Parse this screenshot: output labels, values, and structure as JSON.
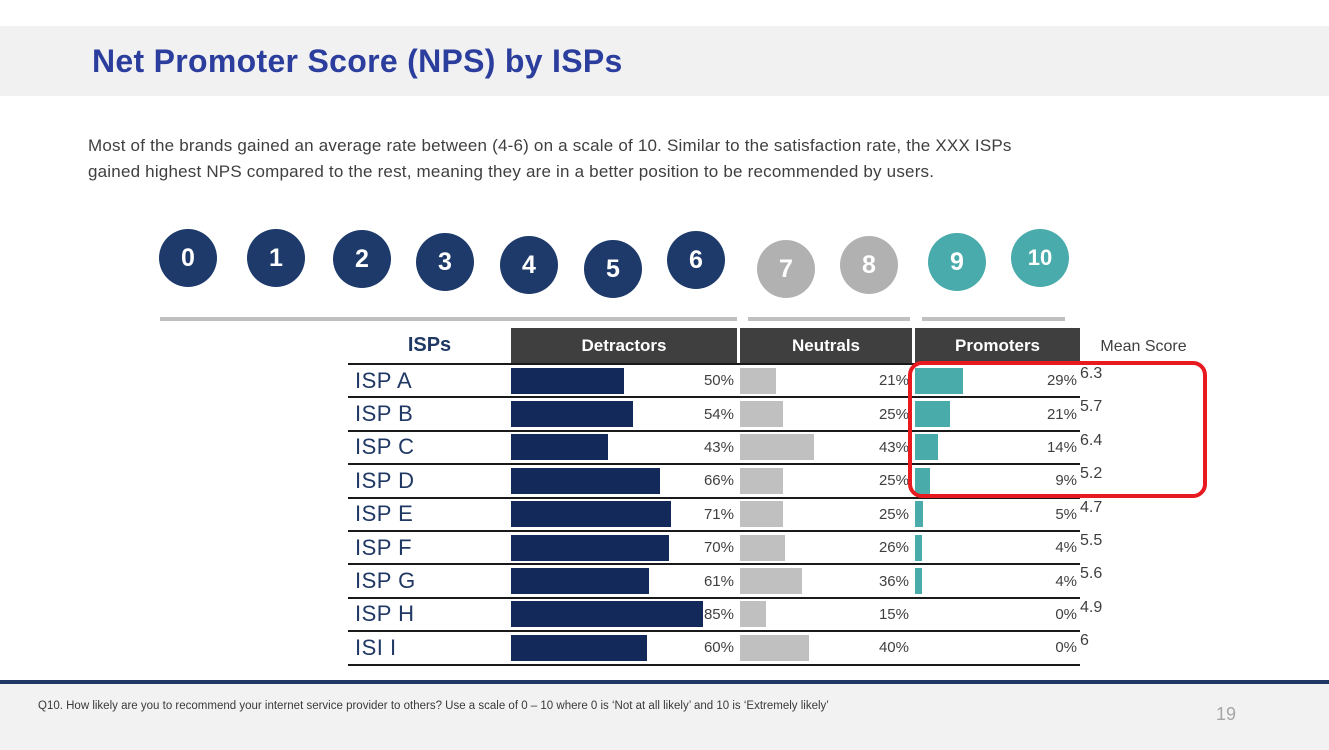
{
  "slide": {
    "title": "Net Promoter Score (NPS) by ISPs",
    "page_number": "19",
    "footnote": "Q10. How likely are you to recommend your internet service provider to others? Use a scale of 0 – 10 where 0 is ‘Not at all likely’ and 10 is ‘Extremely likely’"
  },
  "intro": {
    "line1": "Most of the brands gained an average rate between (4-6) on a scale of 10. Similar to the satisfaction rate, the XXX ISPs",
    "line2": "gained highest NPS compared to the rest, meaning they are in a better position to be recommended by users."
  },
  "scale": {
    "items": [
      {
        "label": "0",
        "group": "detractors"
      },
      {
        "label": "1",
        "group": "detractors"
      },
      {
        "label": "2",
        "group": "detractors"
      },
      {
        "label": "3",
        "group": "detractors"
      },
      {
        "label": "4",
        "group": "detractors"
      },
      {
        "label": "5",
        "group": "detractors"
      },
      {
        "label": "6",
        "group": "detractors"
      },
      {
        "label": "7",
        "group": "neutrals"
      },
      {
        "label": "8",
        "group": "neutrals"
      },
      {
        "label": "9",
        "group": "promoters"
      },
      {
        "label": "10",
        "group": "promoters"
      }
    ]
  },
  "table": {
    "headers": {
      "isps": "ISPs",
      "detractors": "Detractors",
      "neutrals": "Neutrals",
      "promoters": "Promoters",
      "mean": "Mean Score"
    },
    "rows": [
      {
        "label": "ISP A",
        "detractors": 50,
        "detractors_label": "50%",
        "neutrals": 21,
        "neutrals_label": "21%",
        "promoters": 29,
        "promoters_label": "29%",
        "mean": "6.3"
      },
      {
        "label": "ISP B",
        "detractors": 54,
        "detractors_label": "54%",
        "neutrals": 25,
        "neutrals_label": "25%",
        "promoters": 21,
        "promoters_label": "21%",
        "mean": "5.7"
      },
      {
        "label": "ISP C",
        "detractors": 43,
        "detractors_label": "43%",
        "neutrals": 43,
        "neutrals_label": "43%",
        "promoters": 14,
        "promoters_label": "14%",
        "mean": "6.4"
      },
      {
        "label": "ISP D",
        "detractors": 66,
        "detractors_label": "66%",
        "neutrals": 25,
        "neutrals_label": "25%",
        "promoters": 9,
        "promoters_label": "9%",
        "mean": "5.2"
      },
      {
        "label": "ISP E",
        "detractors": 71,
        "detractors_label": "71%",
        "neutrals": 25,
        "neutrals_label": "25%",
        "promoters": 5,
        "promoters_label": "5%",
        "mean": "4.7"
      },
      {
        "label": "ISP F",
        "detractors": 70,
        "detractors_label": "70%",
        "neutrals": 26,
        "neutrals_label": "26%",
        "promoters": 4,
        "promoters_label": "4%",
        "mean": "5.5"
      },
      {
        "label": "ISP G",
        "detractors": 61,
        "detractors_label": "61%",
        "neutrals": 36,
        "neutrals_label": "36%",
        "promoters": 4,
        "promoters_label": "4%",
        "mean": "5.6"
      },
      {
        "label": "ISP H",
        "detractors": 85,
        "detractors_label": "85%",
        "neutrals": 15,
        "neutrals_label": "15%",
        "promoters": 0,
        "promoters_label": "0%",
        "mean": "4.9"
      },
      {
        "label": "ISI I",
        "detractors": 60,
        "detractors_label": "60%",
        "neutrals": 40,
        "neutrals_label": "40%",
        "promoters": 0,
        "promoters_label": "0%",
        "mean": "6"
      }
    ]
  },
  "colors": {
    "title_blue": "#2b3e9d",
    "navy": "#1f3864",
    "bar_navy": "#12295a",
    "teal": "#4aabab",
    "gray_circle": "#b1b1b1",
    "gray_bar": "#c0c0c0",
    "header_dark": "#3f3f3f",
    "highlight_red": "#e8191f",
    "band_gray": "#f1f1f2",
    "footer_gray": "#f2f2f2"
  },
  "chart_data": {
    "type": "bar",
    "orientation": "horizontal",
    "title": "Net Promoter Score (NPS) by ISPs",
    "categories": [
      "ISP A",
      "ISP B",
      "ISP C",
      "ISP D",
      "ISP E",
      "ISP F",
      "ISP G",
      "ISP H",
      "ISI I"
    ],
    "series": [
      {
        "name": "Detractors",
        "values": [
          50,
          54,
          43,
          66,
          71,
          70,
          61,
          85,
          60
        ],
        "color": "#12295a"
      },
      {
        "name": "Neutrals",
        "values": [
          21,
          25,
          43,
          25,
          25,
          26,
          36,
          15,
          40
        ],
        "color": "#c0c0c0"
      },
      {
        "name": "Promoters",
        "values": [
          29,
          21,
          14,
          9,
          5,
          4,
          4,
          0,
          0
        ],
        "color": "#4aabab"
      }
    ],
    "mean_scores": [
      6.3,
      5.7,
      6.4,
      5.2,
      4.7,
      5.5,
      5.6,
      4.9,
      6
    ],
    "value_format": "percent",
    "scale": {
      "min": 0,
      "max": 10,
      "detractors": "0-6",
      "neutrals": "7-8",
      "promoters": "9-10"
    },
    "highlighted_rows": [
      "ISP A",
      "ISP B",
      "ISP C",
      "ISP D"
    ],
    "legend_position": "none",
    "grid": false
  }
}
